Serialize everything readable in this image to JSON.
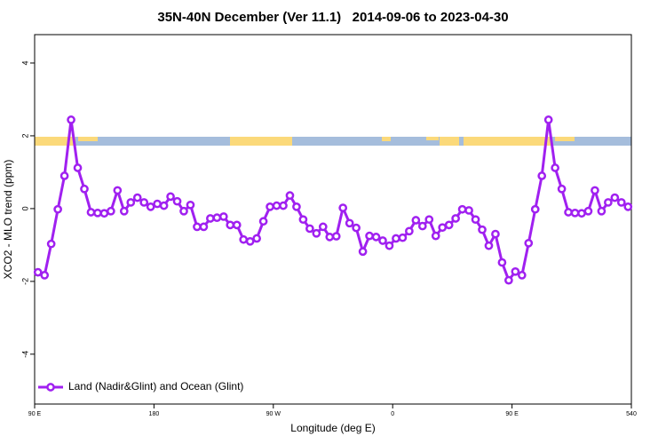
{
  "chart_data": {
    "type": "line",
    "title": "35N-40N December (Ver 11.1)   2014-09-06 to 2023-04-30",
    "x_label": "Longitude (deg E)",
    "y_label": "XCO2 - MLO trend (ppm)",
    "x": [
      92.5,
      97.5,
      102.5,
      107.5,
      112.5,
      117.5,
      122.5,
      127.5,
      132.5,
      137.5,
      142.5,
      147.5,
      152.5,
      157.5,
      162.5,
      167.5,
      172.5,
      177.5,
      182.5,
      187.5,
      192.5,
      197.5,
      202.5,
      207.5,
      212.5,
      217.5,
      222.5,
      227.5,
      232.5,
      237.5,
      242.5,
      247.5,
      252.5,
      257.5,
      262.5,
      267.5,
      272.5,
      277.5,
      282.5,
      287.5,
      292.5,
      297.5,
      302.5,
      307.5,
      312.5,
      317.5,
      322.5,
      327.5,
      332.5,
      337.5,
      342.5,
      347.5,
      352.5,
      357.5,
      362.5,
      367.5,
      372.5,
      377.5,
      382.5,
      387.5,
      392.5,
      397.5,
      402.5,
      407.5,
      412.5,
      417.5,
      422.5,
      427.5,
      432.5,
      437.5,
      442.5,
      447.5,
      452.5,
      457.5,
      462.5,
      467.5,
      472.5,
      477.5,
      482.5,
      487.5,
      492.5,
      497.5,
      502.5,
      507.5,
      512.5,
      517.5,
      522.5,
      527.5,
      532.5,
      537.5
    ],
    "series": [
      {
        "name": "Land (Nadir&Glint) and Ocean (Glint)",
        "color": "#a020f0",
        "values": [
          -1.75,
          -1.83,
          -0.97,
          -0.02,
          0.9,
          2.44,
          1.12,
          0.54,
          -0.1,
          -0.12,
          -0.13,
          -0.07,
          0.5,
          -0.07,
          0.17,
          0.3,
          0.17,
          0.05,
          0.13,
          0.08,
          0.33,
          0.2,
          -0.07,
          0.1,
          -0.5,
          -0.5,
          -0.27,
          -0.25,
          -0.22,
          -0.45,
          -0.45,
          -0.85,
          -0.9,
          -0.82,
          -0.35,
          0.05,
          0.08,
          0.08,
          0.36,
          0.05,
          -0.3,
          -0.55,
          -0.68,
          -0.5,
          -0.78,
          -0.76,
          0.02,
          -0.4,
          -0.53,
          -1.18,
          -0.75,
          -0.78,
          -0.88,
          -1.02,
          -0.82,
          -0.8,
          -0.62,
          -0.32,
          -0.48,
          -0.3,
          -0.75,
          -0.52,
          -0.45,
          -0.27,
          -0.02,
          -0.05,
          -0.3,
          -0.58,
          -1.02,
          -0.7,
          -1.48,
          -1.97,
          -1.73,
          -1.83,
          -0.95,
          -0.02,
          0.9,
          2.44,
          1.12,
          0.54,
          -0.1,
          -0.12,
          -0.13,
          -0.07,
          0.5,
          -0.07,
          0.17,
          0.3,
          0.17,
          0.05
        ]
      }
    ],
    "xlim": [
      90,
      540
    ],
    "xticks": [
      {
        "value": 90,
        "label": "90 E"
      },
      180,
      {
        "value": 270,
        "label": "90 W"
      },
      {
        "value": 360,
        "label": "0"
      },
      {
        "value": 450,
        "label": "90 E"
      },
      540
    ],
    "ylim": [
      -5.37,
      4.78
    ],
    "yticks": [
      -4,
      -2,
      0,
      2,
      4
    ],
    "legend": "bottom-left"
  }
}
